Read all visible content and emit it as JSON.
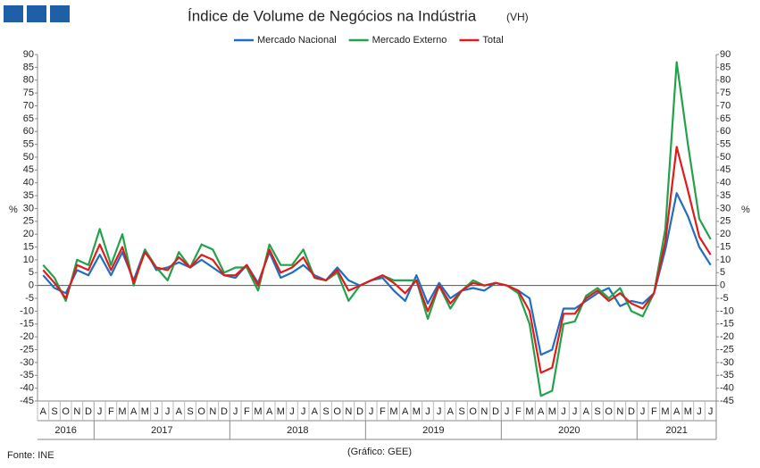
{
  "chart_data": {
    "type": "line",
    "title": "Índice de Volume de Negócios na Indústria",
    "title_suffix": "(VH)",
    "y_label": "%",
    "y2_label": "%",
    "source": "Fonte: INE",
    "credit": "(Gráfico: GEE)",
    "category_groups": [
      {
        "label": "2016",
        "categories": [
          "A",
          "S",
          "O",
          "N",
          "D"
        ]
      },
      {
        "label": "2017",
        "categories": [
          "J",
          "F",
          "M",
          "A",
          "M",
          "J",
          "J",
          "A",
          "S",
          "O",
          "N",
          "D"
        ]
      },
      {
        "label": "2018",
        "categories": [
          "J",
          "F",
          "M",
          "A",
          "M",
          "J",
          "J",
          "A",
          "S",
          "O",
          "N",
          "D"
        ]
      },
      {
        "label": "2019",
        "categories": [
          "J",
          "F",
          "M",
          "A",
          "M",
          "J",
          "J",
          "A",
          "S",
          "O",
          "N",
          "D"
        ]
      },
      {
        "label": "2020",
        "categories": [
          "J",
          "F",
          "M",
          "A",
          "M",
          "J",
          "J",
          "A",
          "S",
          "O",
          "N",
          "D"
        ]
      },
      {
        "label": "2021",
        "categories": [
          "J",
          "F",
          "M",
          "A",
          "M",
          "J",
          "J"
        ]
      }
    ],
    "series": [
      {
        "name": "Mercado Nacional",
        "color": "#1f6fbf",
        "values": [
          4,
          -1,
          -3,
          6,
          4,
          12,
          4,
          13,
          2,
          14,
          6,
          7,
          9,
          7,
          10,
          7,
          4,
          3,
          8,
          1,
          13,
          3,
          5,
          8,
          4,
          2,
          7,
          2,
          0,
          2,
          3,
          -2,
          -6,
          4,
          -7,
          1,
          -5,
          -2,
          -1,
          -2,
          1,
          0,
          -2,
          -5,
          -27,
          -25,
          -9,
          -9,
          -6,
          -3,
          -1,
          -8,
          -6,
          -7,
          -3,
          14,
          36,
          27,
          15,
          8
        ]
      },
      {
        "name": "Mercado Externo",
        "color": "#22a24a",
        "values": [
          8,
          3,
          -6,
          10,
          8,
          22,
          8,
          20,
          0,
          14,
          7,
          2,
          13,
          7,
          16,
          14,
          5,
          7,
          7,
          -2,
          16,
          8,
          8,
          14,
          3,
          2,
          5,
          -6,
          0,
          2,
          4,
          2,
          2,
          2,
          -13,
          0,
          -9,
          -2,
          2,
          0,
          1,
          0,
          -3,
          -15,
          -43,
          -41,
          -15,
          -14,
          -4,
          -1,
          -5,
          -1,
          -10,
          -12,
          -3,
          22,
          87,
          55,
          26,
          18
        ]
      },
      {
        "name": "Total",
        "color": "#e01b1b",
        "values": [
          6,
          1,
          -5,
          8,
          6,
          16,
          6,
          15,
          1,
          13,
          7,
          6,
          11,
          7,
          12,
          10,
          4,
          4,
          8,
          0,
          14,
          5,
          7,
          11,
          3,
          2,
          6,
          -2,
          0,
          2,
          4,
          1,
          -3,
          2,
          -10,
          0,
          -7,
          -2,
          1,
          0,
          1,
          0,
          -2,
          -10,
          -34,
          -32,
          -11,
          -11,
          -5,
          -2,
          -6,
          -3,
          -7,
          -9,
          -3,
          17,
          54,
          37,
          19,
          12
        ]
      }
    ],
    "ylim": [
      -45,
      90
    ],
    "yticks": [
      -45,
      -40,
      -35,
      -30,
      -25,
      -20,
      -15,
      -10,
      -5,
      0,
      5,
      10,
      15,
      20,
      25,
      30,
      35,
      40,
      45,
      50,
      55,
      60,
      65,
      70,
      75,
      80,
      85,
      90
    ],
    "y2lim": [
      -45,
      90
    ],
    "y2ticks": [
      -45,
      -40,
      -35,
      -30,
      -25,
      -20,
      -15,
      -10,
      -5,
      0,
      5,
      10,
      15,
      20,
      25,
      30,
      35,
      40,
      45,
      50,
      55,
      60,
      65,
      70,
      75,
      80,
      85,
      90
    ],
    "grid": false,
    "legend": "top"
  }
}
